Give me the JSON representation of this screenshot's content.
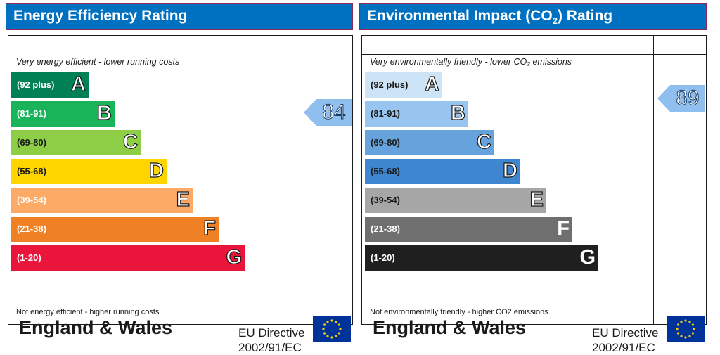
{
  "chart_data": [
    {
      "type": "bar",
      "title": "Energy Efficiency Rating",
      "caption_top": "Very energy efficient - lower running costs",
      "caption_bottom": "Not energy efficient - higher running costs",
      "region": "England & Wales",
      "directive_line1": "EU Directive",
      "directive_line2": "2002/91/EC",
      "header_color": "#0070c0",
      "bands": [
        {
          "range": "(92 plus)",
          "letter": "A",
          "color": "#008054",
          "text_color": "#ffffff"
        },
        {
          "range": "(81-91)",
          "letter": "B",
          "color": "#19b459",
          "text_color": "#ffffff"
        },
        {
          "range": "(69-80)",
          "letter": "C",
          "color": "#8dce46",
          "text_color": "#1a1a1a"
        },
        {
          "range": "(55-68)",
          "letter": "D",
          "color": "#ffd500",
          "text_color": "#1a1a1a"
        },
        {
          "range": "(39-54)",
          "letter": "E",
          "color": "#fcaa65",
          "text_color": "#ffffff"
        },
        {
          "range": "(21-38)",
          "letter": "F",
          "color": "#ef8023",
          "text_color": "#ffffff"
        },
        {
          "range": "(1-20)",
          "letter": "G",
          "color": "#e9153b",
          "text_color": "#ffffff"
        }
      ],
      "rating": 84,
      "rating_band": "B",
      "arrow_color": "#8fbfef"
    },
    {
      "type": "bar",
      "title_main": "Environmental Impact (CO",
      "title_sub": "2",
      "title_end": ") Rating",
      "caption_top": "Very environmentally friendly - lower CO₂ emissions",
      "caption_bottom": "Not environmentally friendly - higher CO2 emissions",
      "region": "England & Wales",
      "directive_line1": "EU Directive",
      "directive_line2": "2002/91/EC",
      "header_color": "#0070c0",
      "bands": [
        {
          "range": "(92 plus)",
          "letter": "A",
          "color": "#cde4f7",
          "text_color": "#1a1a1a"
        },
        {
          "range": "(81-91)",
          "letter": "B",
          "color": "#97c5ef",
          "text_color": "#1a1a1a"
        },
        {
          "range": "(69-80)",
          "letter": "C",
          "color": "#66a3dc",
          "text_color": "#1a1a1a"
        },
        {
          "range": "(55-68)",
          "letter": "D",
          "color": "#3e86cf",
          "text_color": "#1a1a1a"
        },
        {
          "range": "(39-54)",
          "letter": "E",
          "color": "#a6a6a6",
          "text_color": "#1a1a1a"
        },
        {
          "range": "(21-38)",
          "letter": "F",
          "color": "#6f6f6f",
          "text_color": "#ffffff"
        },
        {
          "range": "(1-20)",
          "letter": "G",
          "color": "#1f1f1f",
          "text_color": "#ffffff"
        }
      ],
      "rating": 89,
      "rating_band": "B",
      "arrow_color": "#8fbfef"
    }
  ]
}
